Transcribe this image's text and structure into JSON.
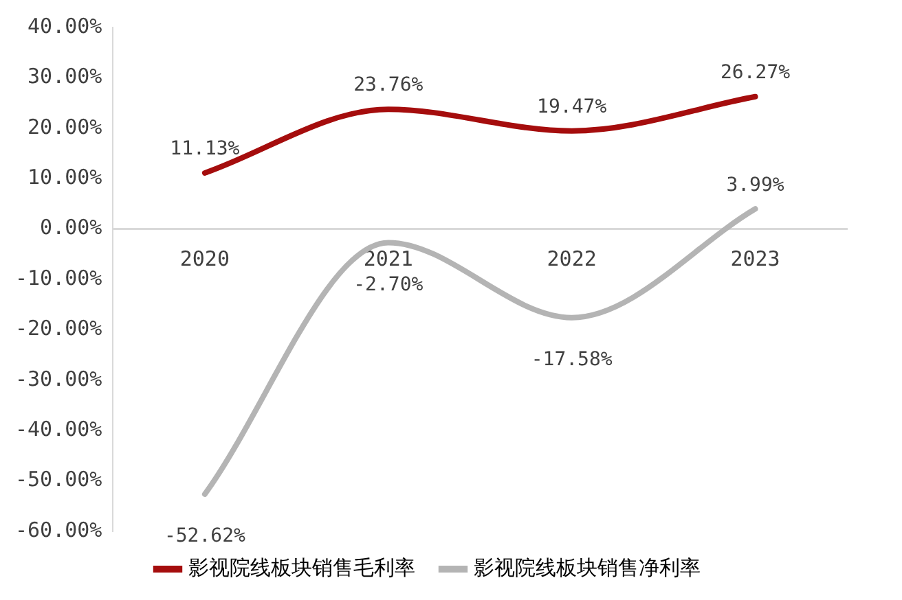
{
  "chart_data": {
    "type": "line",
    "categories": [
      "2020",
      "2021",
      "2022",
      "2023"
    ],
    "series": [
      {
        "name": "影视院线板块销售毛利率",
        "color": "#a50d0d",
        "values": [
          11.13,
          23.76,
          19.47,
          26.27
        ],
        "value_labels": [
          "11.13%",
          "23.76%",
          "19.47%",
          "26.27%"
        ]
      },
      {
        "name": "影视院线板块销售净利率",
        "color": "#b4b4b4",
        "values": [
          -52.62,
          -2.7,
          -17.58,
          3.99
        ],
        "value_labels": [
          "-52.62%",
          "-2.70%",
          "-17.58%",
          "3.99%"
        ]
      }
    ],
    "ylim": [
      -60,
      40
    ],
    "yticks": [
      {
        "value": -60,
        "label": "-60.00%"
      },
      {
        "value": -50,
        "label": "-50.00%"
      },
      {
        "value": -40,
        "label": "-40.00%"
      },
      {
        "value": -30,
        "label": "-30.00%"
      },
      {
        "value": -20,
        "label": "-20.00%"
      },
      {
        "value": -10,
        "label": "-10.00%"
      },
      {
        "value": 0,
        "label": "0.00%"
      },
      {
        "value": 10,
        "label": "10.00%"
      },
      {
        "value": 20,
        "label": "20.00%"
      },
      {
        "value": 30,
        "label": "30.00%"
      },
      {
        "value": 40,
        "label": "40.00%"
      }
    ],
    "grid": false,
    "legend": "bottom",
    "marker": "none",
    "line_style": "solid"
  }
}
